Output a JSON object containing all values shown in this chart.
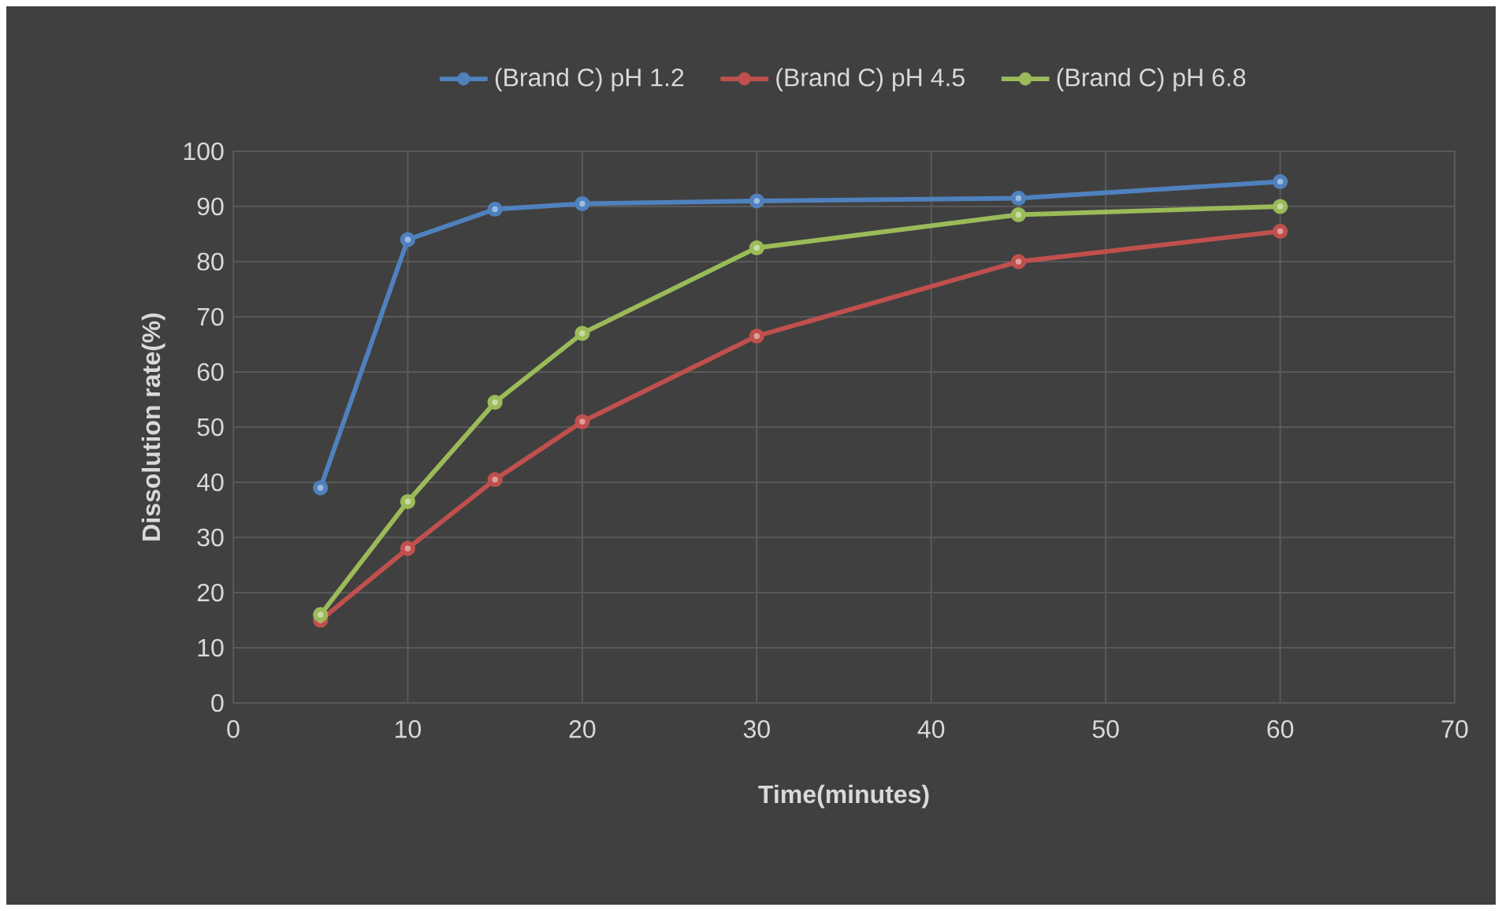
{
  "chart_data": {
    "type": "line",
    "xlabel": "Time(minutes)",
    "ylabel": "Dissolution rate(%)",
    "x": [
      5,
      10,
      15,
      20,
      30,
      45,
      60
    ],
    "series": [
      {
        "name": "(Brand C) pH 1.2",
        "color": "#4f81bd",
        "values": [
          39,
          84,
          89.5,
          90.5,
          91,
          91.5,
          94.5
        ]
      },
      {
        "name": "(Brand C) pH 4.5",
        "color": "#c0504d",
        "values": [
          15,
          28,
          40.5,
          51,
          66.5,
          80,
          85.5
        ]
      },
      {
        "name": "(Brand C) pH 6.8",
        "color": "#9bbb59",
        "values": [
          16,
          36.5,
          54.5,
          67,
          82.5,
          88.5,
          90
        ]
      }
    ],
    "xlim": [
      0,
      70
    ],
    "xticks": [
      0,
      10,
      20,
      30,
      40,
      50,
      60,
      70
    ],
    "ylim": [
      0,
      100
    ],
    "yticks": [
      0,
      10,
      20,
      30,
      40,
      50,
      60,
      70,
      80,
      90,
      100
    ],
    "grid": true,
    "legend": "top",
    "marker": "circle",
    "line_style": "solid"
  }
}
